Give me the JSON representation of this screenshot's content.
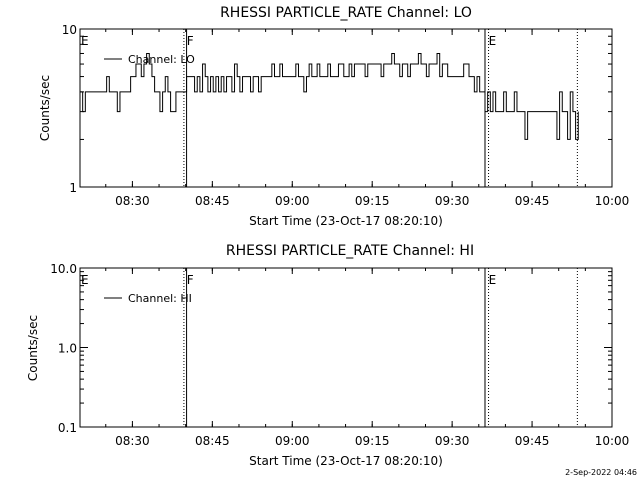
{
  "chart_data": [
    {
      "type": "line",
      "title": "RHESSI PARTICLE_RATE Channel: LO",
      "xlabel": "Start Time (23-Oct-17 08:20:10)",
      "ylabel": "Counts/sec",
      "y_scale": "log",
      "ylim": [
        1,
        10
      ],
      "xlim": [
        "08:20:10",
        "10:00:00"
      ],
      "x_ticks": [
        "08:30",
        "08:45",
        "09:00",
        "09:15",
        "09:30",
        "09:45",
        "10:00"
      ],
      "y_ticks": [
        "1",
        "10"
      ],
      "legend": {
        "position": "top-left",
        "entries": [
          "Channel: LO"
        ]
      },
      "region_labels": [
        {
          "label": "E",
          "at": "08:20:10"
        },
        {
          "label": "F",
          "at": "08:40:00"
        },
        {
          "label": "E",
          "at": "09:36:40"
        }
      ],
      "boundary_lines": [
        {
          "time": "08:39:40",
          "style": "dotted"
        },
        {
          "time": "08:40:10",
          "style": "solid"
        },
        {
          "time": "09:36:10",
          "style": "solid"
        },
        {
          "time": "09:36:50",
          "style": "dotted"
        },
        {
          "time": "09:53:30",
          "style": "dotted"
        }
      ],
      "series": [
        {
          "name": "Channel: LO",
          "x_minutes_after_0820": [
            0,
            0.5,
            1,
            1.5,
            2,
            2.5,
            3,
            3.5,
            4,
            4.5,
            5,
            5.5,
            6,
            6.5,
            7,
            7.5,
            8,
            8.5,
            9,
            9.5,
            10,
            10.5,
            11,
            11.5,
            12,
            12.5,
            13,
            13.5,
            14,
            14.5,
            15,
            15.5,
            16,
            16.5,
            17,
            17.5,
            18,
            18.5,
            19,
            19.5,
            20,
            20.5,
            21,
            21.5,
            22,
            22.5,
            23,
            23.5,
            24,
            24.5,
            25,
            25.5,
            26,
            26.5,
            27,
            27.5,
            28,
            28.5,
            29,
            29.5,
            30,
            30.5,
            31,
            31.5,
            32,
            32.5,
            33,
            33.5,
            34,
            34.5,
            35,
            35.5,
            36,
            36.5,
            37,
            37.5,
            38,
            38.5,
            39,
            39.5,
            40,
            40.5,
            41,
            41.5,
            42,
            42.5,
            43,
            43.5,
            44,
            44.5,
            45,
            45.5,
            46,
            46.5,
            47,
            47.5,
            48,
            48.5,
            49,
            49.5,
            50,
            50.5,
            51,
            51.5,
            52,
            52.5,
            53,
            53.5,
            54,
            54.5,
            55,
            55.5,
            56,
            56.5,
            57,
            57.5,
            58,
            58.5,
            59,
            59.5,
            60,
            60.5,
            61,
            61.5,
            62,
            62.5,
            63,
            63.5,
            64,
            64.5,
            65,
            65.5,
            66,
            66.5,
            67,
            67.5,
            68,
            68.5,
            69,
            69.5,
            70,
            70.5,
            71,
            71.5,
            72,
            72.5,
            73,
            73.5,
            74,
            74.5,
            75,
            75.5,
            76,
            76.5,
            77,
            77.5,
            78,
            78.5,
            79,
            79.5,
            80,
            80.5,
            81,
            81.5,
            82,
            82.5,
            83,
            83.5,
            84,
            84.5,
            85,
            85.5,
            86,
            86.5,
            87,
            87.5,
            88,
            88.5,
            89,
            89.5,
            90,
            90.5,
            91,
            91.5,
            92,
            92.5,
            93,
            93.5
          ],
          "counts_per_sec": [
            4,
            3,
            4,
            4,
            4,
            4,
            4,
            4,
            4,
            4,
            5,
            4,
            4,
            4,
            3,
            4,
            4,
            4,
            4,
            5,
            5,
            6,
            6,
            5,
            6,
            7,
            6,
            5,
            4,
            4,
            3,
            4,
            5,
            4,
            3,
            3,
            4,
            4,
            4,
            4,
            5,
            5,
            5,
            4,
            5,
            4,
            6,
            5,
            4,
            5,
            4,
            5,
            4,
            5,
            4,
            5,
            5,
            4,
            6,
            5,
            4,
            5,
            5,
            5,
            4,
            5,
            5,
            4,
            5,
            5,
            5,
            5,
            6,
            5,
            5,
            6,
            5,
            5,
            5,
            5,
            5,
            6,
            5,
            5,
            4,
            5,
            6,
            5,
            5,
            6,
            5,
            5,
            5,
            6,
            5,
            5,
            5,
            6,
            6,
            5,
            5,
            6,
            5,
            6,
            6,
            6,
            6,
            5,
            6,
            6,
            6,
            6,
            6,
            5,
            6,
            6,
            6,
            7,
            6,
            6,
            5,
            6,
            6,
            5,
            6,
            6,
            6,
            7,
            6,
            6,
            5,
            6,
            6,
            6,
            7,
            5,
            6,
            6,
            5,
            5,
            5,
            5,
            5,
            5,
            6,
            6,
            5,
            5,
            4,
            5,
            4,
            4,
            3,
            4,
            3,
            4,
            3,
            3,
            3,
            4,
            3,
            3,
            3,
            4,
            3,
            3,
            3,
            2,
            3,
            3,
            3,
            3,
            3,
            3,
            3,
            3,
            3,
            3,
            3,
            2,
            4,
            3,
            3,
            2,
            4,
            3,
            2,
            3
          ]
        }
      ]
    },
    {
      "type": "line",
      "title": "RHESSI PARTICLE_RATE Channel: HI",
      "xlabel": "Start Time (23-Oct-17 08:20:10)",
      "ylabel": "Counts/sec",
      "y_scale": "log",
      "ylim": [
        0.1,
        10
      ],
      "xlim": [
        "08:20:10",
        "10:00:00"
      ],
      "x_ticks": [
        "08:30",
        "08:45",
        "09:00",
        "09:15",
        "09:30",
        "09:45",
        "10:00"
      ],
      "y_ticks": [
        "0.1",
        "1.0",
        "10.0"
      ],
      "legend": {
        "position": "top-left",
        "entries": [
          "Channel: HI"
        ]
      },
      "region_labels": [
        {
          "label": "E",
          "at": "08:20:10"
        },
        {
          "label": "F",
          "at": "08:40:00"
        },
        {
          "label": "E",
          "at": "09:36:40"
        }
      ],
      "boundary_lines": [
        {
          "time": "08:39:40",
          "style": "dotted"
        },
        {
          "time": "08:40:10",
          "style": "solid"
        },
        {
          "time": "09:36:10",
          "style": "solid"
        },
        {
          "time": "09:36:50",
          "style": "dotted"
        },
        {
          "time": "09:53:30",
          "style": "dotted"
        }
      ],
      "series": [
        {
          "name": "Channel: HI",
          "x_minutes_after_0820": [],
          "counts_per_sec": []
        }
      ]
    }
  ],
  "footer": {
    "timestamp": "2-Sep-2022 04:46"
  }
}
